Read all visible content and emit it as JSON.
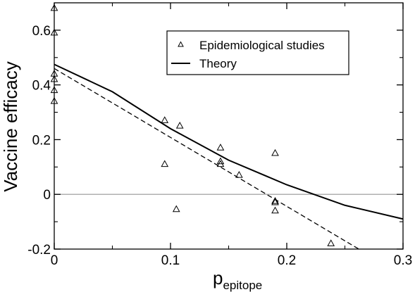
{
  "chart_data": {
    "type": "scatter",
    "xlabel": "p",
    "xlabel_subscript": "epitope",
    "ylabel": "Vaccine efficacy",
    "xlim": [
      0,
      0.3
    ],
    "ylim": [
      -0.2,
      0.7
    ],
    "x_ticks": [
      "0",
      "0.1",
      "0.2",
      "0.3"
    ],
    "y_ticks": [
      "-0.2",
      "0",
      "0.2",
      "0.4",
      "0.6"
    ],
    "x_tick_values": [
      0,
      0.1,
      0.2,
      0.3
    ],
    "y_tick_values": [
      -0.2,
      0,
      0.2,
      0.4,
      0.6
    ],
    "grid": false,
    "legend_position": "top-right",
    "zero_line": true,
    "series": [
      {
        "name": "Epidemiological studies",
        "marker": "triangle",
        "points": [
          [
            0,
            0.68
          ],
          [
            0,
            0.59
          ],
          [
            0,
            0.44
          ],
          [
            0,
            0.42
          ],
          [
            0,
            0.38
          ],
          [
            0,
            0.34
          ],
          [
            0.095,
            0.27
          ],
          [
            0.095,
            0.11
          ],
          [
            0.105,
            -0.055
          ],
          [
            0.108,
            0.25
          ],
          [
            0.143,
            0.17
          ],
          [
            0.143,
            0.12
          ],
          [
            0.143,
            0.11
          ],
          [
            0.159,
            0.07
          ],
          [
            0.19,
            0.15
          ],
          [
            0.19,
            -0.025
          ],
          [
            0.19,
            -0.03
          ],
          [
            0.19,
            -0.06
          ],
          [
            0.238,
            -0.18
          ]
        ]
      },
      {
        "name": "Theory",
        "style": "solid",
        "points": [
          [
            0,
            0.475
          ],
          [
            0.05,
            0.375
          ],
          [
            0.1,
            0.24
          ],
          [
            0.15,
            0.125
          ],
          [
            0.2,
            0.035
          ],
          [
            0.25,
            -0.04
          ],
          [
            0.3,
            -0.09
          ]
        ]
      },
      {
        "style": "dashed",
        "points": [
          [
            0,
            0.46
          ],
          [
            0.262,
            -0.2
          ]
        ]
      }
    ]
  }
}
